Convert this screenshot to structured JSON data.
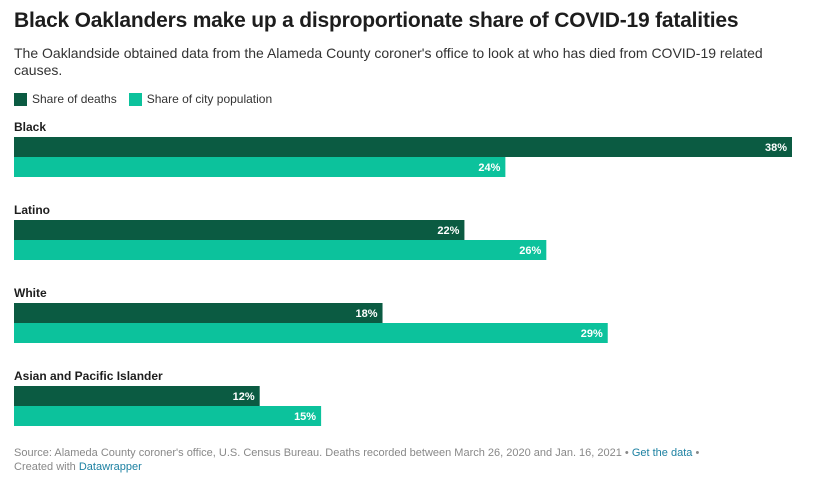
{
  "header": {
    "title": "Black Oaklanders make up a disproportionate share of COVID-19 fatalities",
    "subtitle": "The Oaklandside obtained data from the Alameda County coroner's office to look at who has died from COVID-19 related causes."
  },
  "colors": {
    "deaths": "#0b5b42",
    "population": "#0cc29c"
  },
  "chart_data": {
    "type": "bar",
    "orientation": "horizontal",
    "categories": [
      "Black",
      "Latino",
      "White",
      "Asian and Pacific Islander"
    ],
    "series": [
      {
        "name": "Share of deaths",
        "values": [
          38,
          22,
          18,
          12
        ],
        "labels": [
          "38%",
          "22%",
          "18%",
          "12%"
        ]
      },
      {
        "name": "Share of city population",
        "values": [
          24,
          26,
          29,
          15
        ],
        "labels": [
          "24%",
          "26%",
          "29%",
          "15%"
        ]
      }
    ],
    "xlim": [
      0,
      38
    ],
    "legend": "top-left",
    "grid": false
  },
  "footer": {
    "source": "Source: Alameda County coroner's office, U.S. Census Bureau. Deaths recorded between March 26, 2020 and Jan. 16, 2021 •",
    "get_data": "Get the data",
    "separator": "•",
    "created_with": "Created with",
    "tool": "Datawrapper"
  }
}
